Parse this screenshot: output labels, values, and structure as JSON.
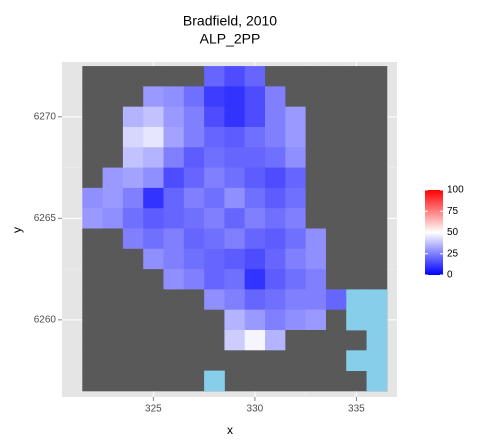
{
  "chart_data": {
    "type": "raster",
    "title": "Bradfield, 2010",
    "subtitle": "ALP_2PP",
    "x_label": "x",
    "y_label": "y",
    "xlim": [
      320.5,
      337.0
    ],
    "ylim": [
      6256.2,
      6272.7
    ],
    "xticks": [
      325,
      330,
      335
    ],
    "yticks": [
      6260,
      6265,
      6270
    ],
    "grid": true,
    "x": [
      322,
      323,
      324,
      325,
      326,
      327,
      328,
      329,
      330,
      331,
      332,
      333,
      334,
      335,
      336
    ],
    "y": [
      6272,
      6271,
      6270,
      6269,
      6268,
      6267,
      6266,
      6265,
      6264,
      6263,
      6262,
      6261,
      6260,
      6259,
      6258,
      6257
    ],
    "values": [
      [
        null,
        null,
        null,
        null,
        null,
        null,
        20,
        15,
        20,
        null,
        null,
        null,
        null,
        null,
        null
      ],
      [
        null,
        null,
        null,
        30,
        28,
        22,
        12,
        10,
        15,
        25,
        null,
        null,
        null,
        null,
        null
      ],
      [
        null,
        null,
        35,
        38,
        30,
        25,
        15,
        10,
        15,
        25,
        30,
        null,
        null,
        null,
        null
      ],
      [
        null,
        null,
        42,
        45,
        32,
        25,
        20,
        18,
        22,
        25,
        30,
        null,
        null,
        null,
        null
      ],
      [
        null,
        null,
        38,
        35,
        25,
        18,
        22,
        20,
        20,
        22,
        28,
        null,
        null,
        null,
        null
      ],
      [
        null,
        30,
        32,
        28,
        15,
        20,
        25,
        22,
        18,
        15,
        20,
        null,
        null,
        null,
        null
      ],
      [
        28,
        30,
        25,
        10,
        20,
        25,
        22,
        28,
        22,
        18,
        22,
        null,
        null,
        null,
        null
      ],
      [
        30,
        28,
        22,
        18,
        20,
        22,
        25,
        20,
        25,
        22,
        25,
        null,
        null,
        null,
        null
      ],
      [
        null,
        null,
        25,
        22,
        25,
        20,
        22,
        25,
        20,
        18,
        22,
        28,
        null,
        null,
        null
      ],
      [
        null,
        null,
        null,
        28,
        25,
        22,
        20,
        18,
        15,
        20,
        25,
        28,
        null,
        null,
        null
      ],
      [
        null,
        null,
        null,
        null,
        28,
        25,
        20,
        22,
        10,
        18,
        22,
        25,
        null,
        null,
        null
      ],
      [
        null,
        null,
        null,
        null,
        null,
        null,
        28,
        25,
        20,
        22,
        25,
        25,
        20,
        null,
        null
      ],
      [
        null,
        null,
        null,
        null,
        null,
        null,
        null,
        35,
        30,
        25,
        28,
        30,
        null,
        null,
        null
      ],
      [
        null,
        null,
        null,
        null,
        null,
        null,
        null,
        40,
        48,
        35,
        null,
        null,
        null,
        null,
        null
      ],
      [
        null,
        null,
        null,
        null,
        null,
        null,
        null,
        null,
        null,
        null,
        null,
        null,
        null,
        null,
        null
      ],
      [
        null,
        null,
        null,
        null,
        null,
        null,
        null,
        null,
        null,
        null,
        null,
        null,
        null,
        null,
        null
      ]
    ],
    "na_color": "#595959",
    "low_color": "#0000ff",
    "mid_color": "#ffffff",
    "high_color": "#ff0000",
    "limits": [
      0,
      100
    ],
    "legend_ticks": [
      0,
      25,
      50,
      75,
      100
    ],
    "water": {
      "color": "#87ceeb",
      "x": [
        335,
        336,
        335,
        336,
        336,
        335,
        336,
        336,
        328
      ],
      "y": [
        6261,
        6261,
        6260,
        6260,
        6259,
        6258,
        6258,
        6257,
        6257
      ]
    }
  }
}
